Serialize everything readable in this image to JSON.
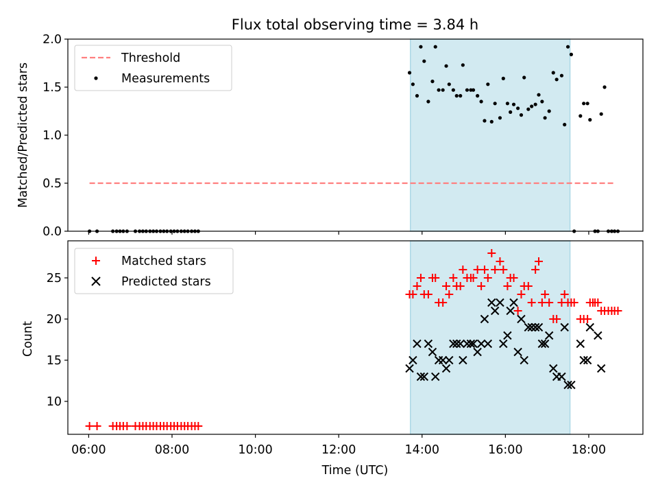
{
  "title": "Flux total observing time = 3.84 h",
  "xlabel": "Time (UTC)",
  "colors": {
    "shade": "#add8e6",
    "threshold": "#ff7f7f",
    "matched": "#ff0000",
    "predicted": "#000000",
    "measurements": "#000000"
  },
  "chart_data": [
    {
      "type": "scatter",
      "ylabel": "Matched/Predicted stars",
      "ylim": [
        0,
        2.0
      ],
      "yticks": [
        0.0,
        0.5,
        1.0,
        1.5,
        2.0
      ],
      "ytick_labels": [
        "0.0",
        "0.5",
        "1.0",
        "1.5",
        "2.0"
      ],
      "legend_position": "upper-left",
      "shaded_interval_hours": [
        13.72,
        17.55
      ],
      "threshold": {
        "name": "Threshold",
        "y": 0.5,
        "x_hours": [
          6.02,
          18.65
        ]
      },
      "measurements": {
        "name": "Measurements",
        "x_hours": [
          6.02,
          6.2,
          6.58,
          6.67,
          6.75,
          6.83,
          6.92,
          7.12,
          7.22,
          7.3,
          7.38,
          7.47,
          7.55,
          7.63,
          7.72,
          7.8,
          7.88,
          7.97,
          8.05,
          8.13,
          8.22,
          8.3,
          8.38,
          8.47,
          8.55,
          8.63,
          13.7,
          13.78,
          13.88,
          13.97,
          14.05,
          14.15,
          14.25,
          14.32,
          14.4,
          14.5,
          14.58,
          14.65,
          14.75,
          14.83,
          14.92,
          14.98,
          15.08,
          15.17,
          15.23,
          15.33,
          15.42,
          15.5,
          15.58,
          15.67,
          15.75,
          15.87,
          15.95,
          16.05,
          16.12,
          16.2,
          16.3,
          16.38,
          16.45,
          16.55,
          16.63,
          16.72,
          16.8,
          16.88,
          16.95,
          17.05,
          17.15,
          17.23,
          17.35,
          17.42,
          17.5,
          17.58,
          17.65,
          17.8,
          17.88,
          17.97,
          18.03,
          18.15,
          18.22,
          18.3,
          18.38,
          18.47,
          18.55,
          18.62,
          18.7
        ],
        "y": [
          0,
          0,
          0,
          0,
          0,
          0,
          0,
          0,
          0,
          0,
          0,
          0,
          0,
          0,
          0,
          0,
          0,
          0,
          0,
          0,
          0,
          0,
          0,
          0,
          0,
          0,
          1.65,
          1.53,
          1.41,
          1.92,
          1.77,
          1.35,
          1.56,
          1.92,
          1.47,
          1.47,
          1.72,
          1.53,
          1.47,
          1.41,
          1.41,
          1.73,
          1.47,
          1.47,
          1.47,
          1.41,
          1.35,
          1.15,
          1.53,
          1.14,
          1.33,
          1.18,
          1.59,
          1.33,
          1.24,
          1.32,
          1.28,
          1.21,
          1.6,
          1.27,
          1.3,
          1.32,
          1.42,
          1.35,
          1.18,
          1.25,
          1.65,
          1.58,
          1.62,
          1.11,
          1.92,
          1.84,
          0,
          1.2,
          1.33,
          1.33,
          1.16,
          0,
          0,
          1.22,
          1.5,
          0,
          0,
          0,
          0
        ]
      }
    },
    {
      "type": "scatter",
      "ylabel": "Count",
      "ylim": [
        6,
        29.5
      ],
      "yticks": [
        10,
        15,
        20,
        25
      ],
      "ytick_labels": [
        "10",
        "15",
        "20",
        "25"
      ],
      "xlim_hours": [
        5.5,
        19.3
      ],
      "xticks_hours": [
        6,
        8,
        10,
        12,
        14,
        16,
        18
      ],
      "xtick_labels": [
        "06:00",
        "08:00",
        "10:00",
        "12:00",
        "14:00",
        "16:00",
        "18:00"
      ],
      "legend_position": "upper-left",
      "shaded_interval_hours": [
        13.72,
        17.55
      ],
      "series": [
        {
          "name": "Matched stars",
          "marker": "plus",
          "x_hours": [
            6.02,
            6.2,
            6.58,
            6.67,
            6.75,
            6.83,
            6.92,
            7.12,
            7.22,
            7.3,
            7.38,
            7.47,
            7.55,
            7.63,
            7.72,
            7.8,
            7.88,
            7.97,
            8.05,
            8.13,
            8.22,
            8.3,
            8.38,
            8.47,
            8.55,
            8.63,
            13.7,
            13.78,
            13.88,
            13.97,
            14.05,
            14.15,
            14.25,
            14.32,
            14.4,
            14.5,
            14.58,
            14.65,
            14.75,
            14.83,
            14.92,
            14.98,
            15.08,
            15.17,
            15.23,
            15.33,
            15.42,
            15.5,
            15.58,
            15.67,
            15.75,
            15.87,
            15.95,
            16.05,
            16.12,
            16.2,
            16.3,
            16.38,
            16.45,
            16.55,
            16.63,
            16.72,
            16.8,
            16.88,
            16.95,
            17.05,
            17.15,
            17.23,
            17.35,
            17.42,
            17.5,
            17.58,
            17.65,
            17.8,
            17.88,
            17.97,
            18.03,
            18.1,
            18.15,
            18.22,
            18.3,
            18.38,
            18.47,
            18.55,
            18.62,
            18.7
          ],
          "y": [
            7,
            7,
            7,
            7,
            7,
            7,
            7,
            7,
            7,
            7,
            7,
            7,
            7,
            7,
            7,
            7,
            7,
            7,
            7,
            7,
            7,
            7,
            7,
            7,
            7,
            7,
            23,
            23,
            24,
            25,
            23,
            23,
            25,
            25,
            22,
            22,
            24,
            23,
            25,
            24,
            24,
            26,
            25,
            25,
            25,
            26,
            24,
            26,
            25,
            28,
            26,
            27,
            26,
            24,
            25,
            25,
            21,
            23,
            24,
            24,
            22,
            26,
            27,
            22,
            23,
            22,
            20,
            20,
            22,
            23,
            22,
            22,
            22,
            20,
            20,
            20,
            22,
            22,
            22,
            22,
            21,
            21,
            21,
            21,
            21,
            21
          ]
        },
        {
          "name": "Predicted stars",
          "marker": "x",
          "x_hours": [
            13.7,
            13.78,
            13.88,
            13.97,
            14.05,
            14.15,
            14.25,
            14.32,
            14.4,
            14.5,
            14.58,
            14.65,
            14.75,
            14.83,
            14.92,
            14.98,
            15.08,
            15.17,
            15.23,
            15.33,
            15.42,
            15.5,
            15.58,
            15.67,
            15.75,
            15.87,
            15.95,
            16.05,
            16.12,
            16.2,
            16.3,
            16.38,
            16.45,
            16.55,
            16.63,
            16.72,
            16.8,
            16.88,
            16.95,
            17.05,
            17.15,
            17.23,
            17.35,
            17.42,
            17.5,
            17.58,
            17.8,
            17.88,
            17.97,
            18.03,
            18.22,
            18.3
          ],
          "y": [
            14,
            15,
            17,
            13,
            13,
            17,
            16,
            13,
            15,
            15,
            14,
            15,
            17,
            17,
            17,
            15,
            17,
            17,
            17,
            16,
            17,
            20,
            17,
            22,
            21,
            22,
            17,
            18,
            21,
            22,
            16,
            20,
            15,
            19,
            19,
            19,
            19,
            17,
            17,
            18,
            14,
            13,
            13,
            19,
            12,
            12,
            17,
            15,
            15,
            19,
            18,
            14
          ]
        }
      ]
    }
  ]
}
